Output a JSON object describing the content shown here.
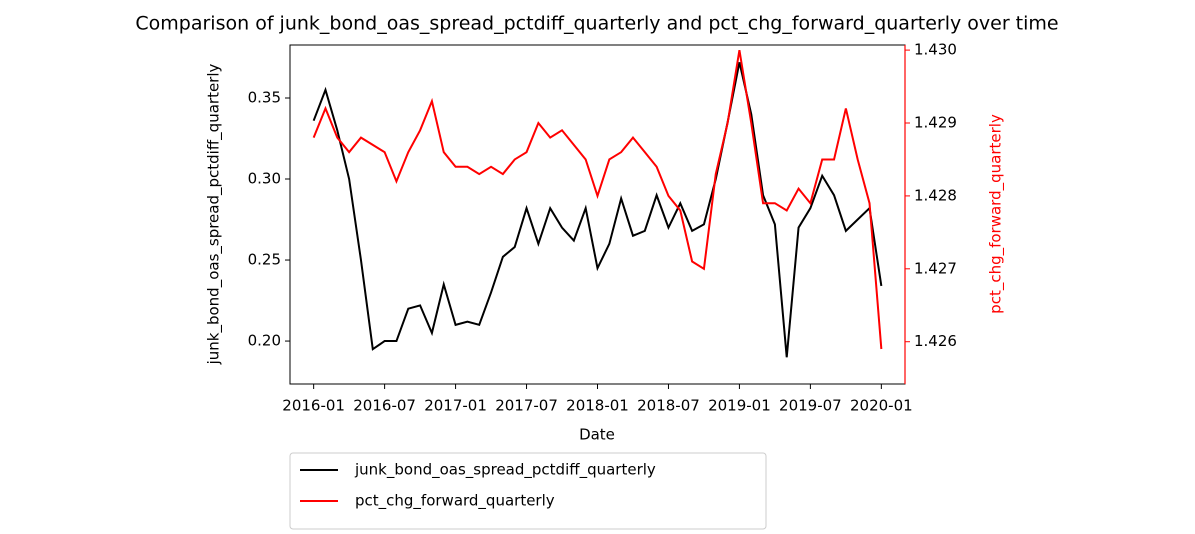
{
  "chart_data": {
    "type": "line",
    "title": "Comparison of junk_bond_oas_spread_pctdiff_quarterly and pct_chg_forward_quarterly over time",
    "xlabel": "Date",
    "ylabel": "junk_bond_oas_spread_pctdiff_quarterly",
    "y2label": "pct_chg_forward_quarterly",
    "x": [
      "2016-01",
      "2016-02",
      "2016-03",
      "2016-04",
      "2016-05",
      "2016-06",
      "2016-07",
      "2016-08",
      "2016-09",
      "2016-10",
      "2016-11",
      "2016-12",
      "2017-01",
      "2017-02",
      "2017-03",
      "2017-04",
      "2017-05",
      "2017-06",
      "2017-07",
      "2017-08",
      "2017-09",
      "2017-10",
      "2017-11",
      "2017-12",
      "2018-01",
      "2018-02",
      "2018-03",
      "2018-04",
      "2018-05",
      "2018-06",
      "2018-07",
      "2018-08",
      "2018-09",
      "2018-10",
      "2018-11",
      "2018-12",
      "2019-01",
      "2019-02",
      "2019-03",
      "2019-04",
      "2019-05",
      "2019-06",
      "2019-07",
      "2019-08",
      "2019-09",
      "2019-10",
      "2019-11",
      "2019-12",
      "2020-01"
    ],
    "series": [
      {
        "name": "junk_bond_oas_spread_pctdiff_quarterly",
        "color": "#000000",
        "axis": "y",
        "values": [
          0.336,
          0.355,
          0.33,
          0.3,
          0.25,
          0.195,
          0.2,
          0.2,
          0.22,
          0.222,
          0.205,
          0.235,
          0.21,
          0.212,
          0.21,
          0.23,
          0.252,
          0.258,
          0.282,
          0.26,
          0.282,
          0.27,
          0.262,
          0.282,
          0.245,
          0.26,
          0.288,
          0.265,
          0.268,
          0.29,
          0.27,
          0.285,
          0.268,
          0.272,
          0.3,
          0.335,
          0.372,
          0.34,
          0.29,
          0.272,
          0.19,
          0.27,
          0.282,
          0.302,
          0.29,
          0.268,
          0.275,
          0.282,
          0.234
        ]
      },
      {
        "name": "pct_chg_forward_quarterly",
        "color": "#ff0000",
        "axis": "y2",
        "values": [
          1.4288,
          1.4292,
          1.4288,
          1.4286,
          1.4288,
          1.4287,
          1.4286,
          1.4282,
          1.4286,
          1.4289,
          1.4293,
          1.4286,
          1.4284,
          1.4284,
          1.4283,
          1.4284,
          1.4283,
          1.4285,
          1.4286,
          1.429,
          1.4288,
          1.4289,
          1.4287,
          1.4285,
          1.428,
          1.4285,
          1.4286,
          1.4288,
          1.4286,
          1.4284,
          1.428,
          1.4278,
          1.4271,
          1.427,
          1.4283,
          1.429,
          1.43,
          1.429,
          1.4279,
          1.4279,
          1.4278,
          1.4281,
          1.4279,
          1.4285,
          1.4285,
          1.4292,
          1.4285,
          1.4279,
          1.4259
        ]
      }
    ],
    "xlim": [
      "2015-11",
      "2020-03"
    ],
    "xticks": [
      "2016-01",
      "2016-07",
      "2017-01",
      "2017-07",
      "2018-01",
      "2018-07",
      "2019-01",
      "2019-07",
      "2020-01"
    ],
    "ylim": [
      0.1735,
      0.3827
    ],
    "yticks": [
      {
        "value": 0.2,
        "label": "0.20"
      },
      {
        "value": 0.25,
        "label": "0.25"
      },
      {
        "value": 0.3,
        "label": "0.30"
      },
      {
        "value": 0.35,
        "label": "0.35"
      }
    ],
    "y2lim": [
      1.42542,
      1.43007
    ],
    "y2ticks": [
      1.426,
      1.427,
      1.428,
      1.429,
      {
        "value": 1.43,
        "label": "1.430"
      }
    ],
    "y2color": "#ff0000",
    "legend": "below"
  }
}
